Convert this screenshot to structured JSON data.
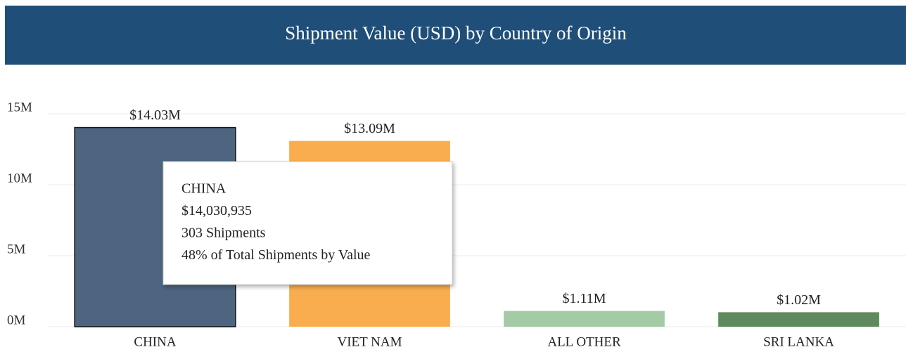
{
  "chart_data": {
    "type": "bar",
    "title": "Shipment Value (USD) by Country of Origin",
    "categories": [
      "CHINA",
      "VIET NAM",
      "ALL OTHER",
      "SRI LANKA"
    ],
    "values": [
      14030935,
      13090000,
      1110000,
      1020000
    ],
    "value_labels": [
      "$14.03M",
      "$13.09M",
      "$1.11M",
      "$1.02M"
    ],
    "colors": [
      "#4d6580",
      "#f9ad4e",
      "#a2cba6",
      "#5e8a5e"
    ],
    "ylim": [
      0,
      15000000
    ],
    "yticks": [
      {
        "value": 0,
        "label": "0M"
      },
      {
        "value": 5000000,
        "label": "5M"
      },
      {
        "value": 10000000,
        "label": "10M"
      },
      {
        "value": 15000000,
        "label": "15M"
      }
    ],
    "grid": true,
    "tooltip": {
      "lines": [
        "CHINA",
        "$14,030,935",
        "303 Shipments",
        "48% of Total Shipments by Value"
      ]
    }
  }
}
